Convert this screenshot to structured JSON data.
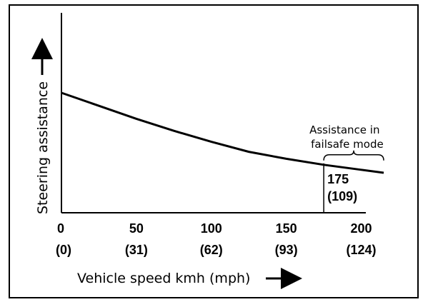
{
  "chart_data": {
    "type": "line",
    "title": "",
    "xlabel": "Vehicle speed kmh (mph)",
    "ylabel": "Steering assistance",
    "xlim": [
      0,
      215
    ],
    "ylim": [
      0,
      100
    ],
    "grid": false,
    "x_ticks": [
      {
        "value": 0,
        "kmh": "0",
        "mph": "(0)"
      },
      {
        "value": 50,
        "kmh": "50",
        "mph": "(31)"
      },
      {
        "value": 100,
        "kmh": "100",
        "mph": "(62)"
      },
      {
        "value": 150,
        "kmh": "150",
        "mph": "(93)"
      },
      {
        "value": 200,
        "kmh": "200",
        "mph": "(124)"
      }
    ],
    "series": [
      {
        "x": [
          0,
          25,
          50,
          75,
          100,
          125,
          150,
          175,
          200,
          215
        ],
        "values": [
          60,
          53.5,
          47,
          41,
          35.5,
          30.5,
          27,
          24,
          21.5,
          20
        ]
      }
    ],
    "marker": {
      "x": 175,
      "label_kmh": "175",
      "label_mph": "(109)"
    },
    "annotation": {
      "lines": [
        "Assistance in",
        "failsafe mode"
      ],
      "x_start": 175,
      "x_end": 215
    }
  }
}
